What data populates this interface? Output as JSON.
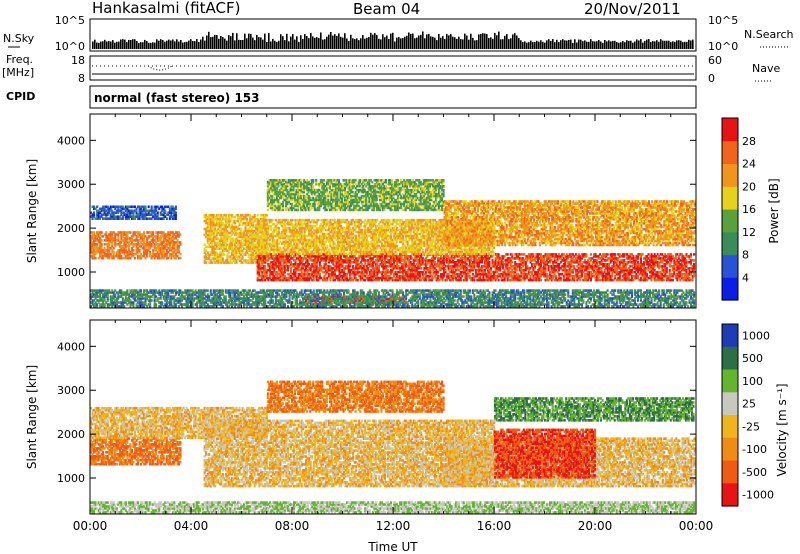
{
  "header": {
    "station": "Hankasalmi (fitACF)",
    "beam": "Beam 04",
    "date": "20/Nov/2011"
  },
  "small_panels": {
    "nsky_label": "N.Sky",
    "nsky_ticks": [
      "10^5",
      "10^0"
    ],
    "nsearch_label": "N.Search",
    "freq_label_line1": "Freq.",
    "freq_label_line2": "[MHz]",
    "freq_ticks": [
      "18",
      "8"
    ],
    "nave_label": "Nave",
    "nave_ticks": [
      "60",
      "0"
    ],
    "cpid_label": "CPID",
    "cpid_value": "normal (fast stereo) 153"
  },
  "colors": {
    "power_scale": [
      "#0a1ee6",
      "#2a52d6",
      "#3c8c5a",
      "#5aa03c",
      "#e6d21e",
      "#f0961e",
      "#f0641e",
      "#e61414"
    ],
    "velocity_scale": [
      "#1e3cb4",
      "#2d6e46",
      "#64b432",
      "#c8c8c0",
      "#f0b41e",
      "#f08c14",
      "#f05a14",
      "#e61414"
    ]
  },
  "chart_data": [
    {
      "type": "heatmap",
      "title": "",
      "xlabel": "Time UT",
      "ylabel": "Slant Range [km]",
      "x_ticks": [
        "00:00",
        "04:00",
        "08:00",
        "12:00",
        "16:00",
        "20:00",
        "00:00"
      ],
      "x_range_hours": [
        0,
        24
      ],
      "y_ticks": [
        "1000",
        "2000",
        "3000",
        "4000"
      ],
      "y_range_km": [
        180,
        4600
      ],
      "colorbar_label": "Power [dB]",
      "colorbar_ticks": [
        "4",
        "8",
        "12",
        "16",
        "20",
        "24",
        "28"
      ],
      "colorbar_range": [
        0,
        32
      ],
      "echo_regions": [
        {
          "t0": 0.0,
          "t1": 3.6,
          "r0": 1300,
          "r1": 1900,
          "value": 24
        },
        {
          "t0": 0.0,
          "t1": 3.4,
          "r0": 2200,
          "r1": 2500,
          "value": 6
        },
        {
          "t0": 4.5,
          "t1": 7.0,
          "r0": 1200,
          "r1": 2300,
          "value": 20
        },
        {
          "t0": 6.6,
          "t1": 23.9,
          "r0": 800,
          "r1": 1400,
          "value": 28
        },
        {
          "t0": 6.6,
          "t1": 16.0,
          "r0": 1400,
          "r1": 2200,
          "value": 20
        },
        {
          "t0": 7.0,
          "t1": 14.0,
          "r0": 2400,
          "r1": 3100,
          "value": 14
        },
        {
          "t0": 14.0,
          "t1": 23.9,
          "r0": 1600,
          "r1": 2600,
          "value": 22
        },
        {
          "t0": 8.5,
          "t1": 12.5,
          "r0": 280,
          "r1": 460,
          "value": 28
        },
        {
          "t0": 0.0,
          "t1": 23.9,
          "r0": 200,
          "r1": 600,
          "value": 10
        }
      ]
    },
    {
      "type": "heatmap",
      "title": "",
      "xlabel": "Time UT",
      "ylabel": "Slant Range [km]",
      "x_ticks": [
        "00:00",
        "04:00",
        "08:00",
        "12:00",
        "16:00",
        "20:00",
        "00:00"
      ],
      "x_range_hours": [
        0,
        24
      ],
      "y_ticks": [
        "1000",
        "2000",
        "3000",
        "4000"
      ],
      "y_range_km": [
        180,
        4600
      ],
      "colorbar_label": "Velocity [m s⁻¹]",
      "colorbar_ticks": [
        "1000",
        "500",
        "100",
        "25",
        "-25",
        "-100",
        "-500",
        "-1000"
      ],
      "echo_regions": [
        {
          "t0": 0.0,
          "t1": 3.6,
          "r0": 1300,
          "r1": 1900,
          "value": -100
        },
        {
          "t0": 0.0,
          "t1": 7.0,
          "r0": 1900,
          "r1": 2600,
          "value": 0
        },
        {
          "t0": 4.5,
          "t1": 16.0,
          "r0": 800,
          "r1": 2300,
          "value": 0
        },
        {
          "t0": 7.0,
          "t1": 14.0,
          "r0": 2500,
          "r1": 3200,
          "value": -100
        },
        {
          "t0": 14.0,
          "t1": 23.9,
          "r0": 800,
          "r1": 1900,
          "value": 0
        },
        {
          "t0": 16.0,
          "t1": 20.0,
          "r0": 1000,
          "r1": 2100,
          "value": -500
        },
        {
          "t0": 16.0,
          "t1": 23.9,
          "r0": 2300,
          "r1": 2800,
          "value": 500
        },
        {
          "t0": 0.0,
          "t1": 23.9,
          "r0": 200,
          "r1": 450,
          "value": 100
        }
      ]
    }
  ]
}
